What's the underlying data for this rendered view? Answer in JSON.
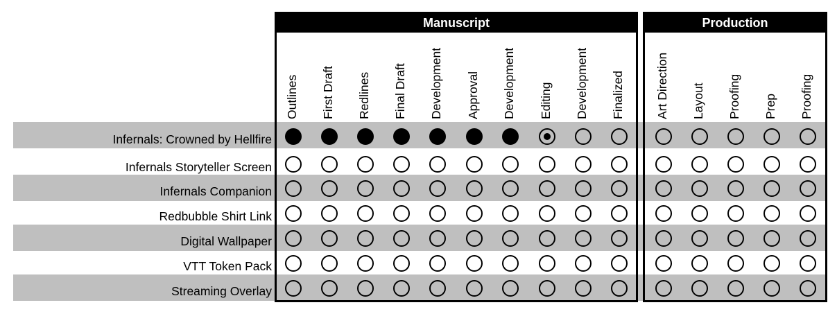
{
  "groups": [
    {
      "label": "Manuscript",
      "columns": 10
    },
    {
      "label": "Production",
      "columns": 5
    }
  ],
  "columns": [
    "Outlines",
    "First Draft",
    "Redlines",
    "Final Draft",
    "Development",
    "Approval",
    "Development",
    "Editing",
    "Development",
    "Finalized",
    "Art Direction",
    "Layout",
    "Proofing",
    "Prep",
    "Proofing"
  ],
  "rows": [
    {
      "label": "Infernals: Crowned by Hellfire",
      "status": [
        "complete",
        "complete",
        "complete",
        "complete",
        "complete",
        "complete",
        "complete",
        "in-progress",
        "not-started",
        "not-started",
        "not-started",
        "not-started",
        "not-started",
        "not-started",
        "not-started"
      ]
    },
    {
      "label": "Infernals Storyteller Screen",
      "status": [
        "not-started",
        "not-started",
        "not-started",
        "not-started",
        "not-started",
        "not-started",
        "not-started",
        "not-started",
        "not-started",
        "not-started",
        "not-started",
        "not-started",
        "not-started",
        "not-started",
        "not-started"
      ]
    },
    {
      "label": "Infernals Companion",
      "status": [
        "not-started",
        "not-started",
        "not-started",
        "not-started",
        "not-started",
        "not-started",
        "not-started",
        "not-started",
        "not-started",
        "not-started",
        "not-started",
        "not-started",
        "not-started",
        "not-started",
        "not-started"
      ]
    },
    {
      "label": "Redbubble Shirt Link",
      "status": [
        "not-started",
        "not-started",
        "not-started",
        "not-started",
        "not-started",
        "not-started",
        "not-started",
        "not-started",
        "not-started",
        "not-started",
        "not-started",
        "not-started",
        "not-started",
        "not-started",
        "not-started"
      ]
    },
    {
      "label": "Digital Wallpaper",
      "status": [
        "not-started",
        "not-started",
        "not-started",
        "not-started",
        "not-started",
        "not-started",
        "not-started",
        "not-started",
        "not-started",
        "not-started",
        "not-started",
        "not-started",
        "not-started",
        "not-started",
        "not-started"
      ]
    },
    {
      "label": "VTT Token Pack",
      "status": [
        "not-started",
        "not-started",
        "not-started",
        "not-started",
        "not-started",
        "not-started",
        "not-started",
        "not-started",
        "not-started",
        "not-started",
        "not-started",
        "not-started",
        "not-started",
        "not-started",
        "not-started"
      ]
    },
    {
      "label": "Streaming Overlay",
      "status": [
        "not-started",
        "not-started",
        "not-started",
        "not-started",
        "not-started",
        "not-started",
        "not-started",
        "not-started",
        "not-started",
        "not-started",
        "not-started",
        "not-started",
        "not-started",
        "not-started",
        "not-started"
      ]
    }
  ],
  "colors": {
    "band": "#bfbfbf",
    "header": "#000000",
    "header_text": "#ffffff",
    "mark": "#000000"
  }
}
